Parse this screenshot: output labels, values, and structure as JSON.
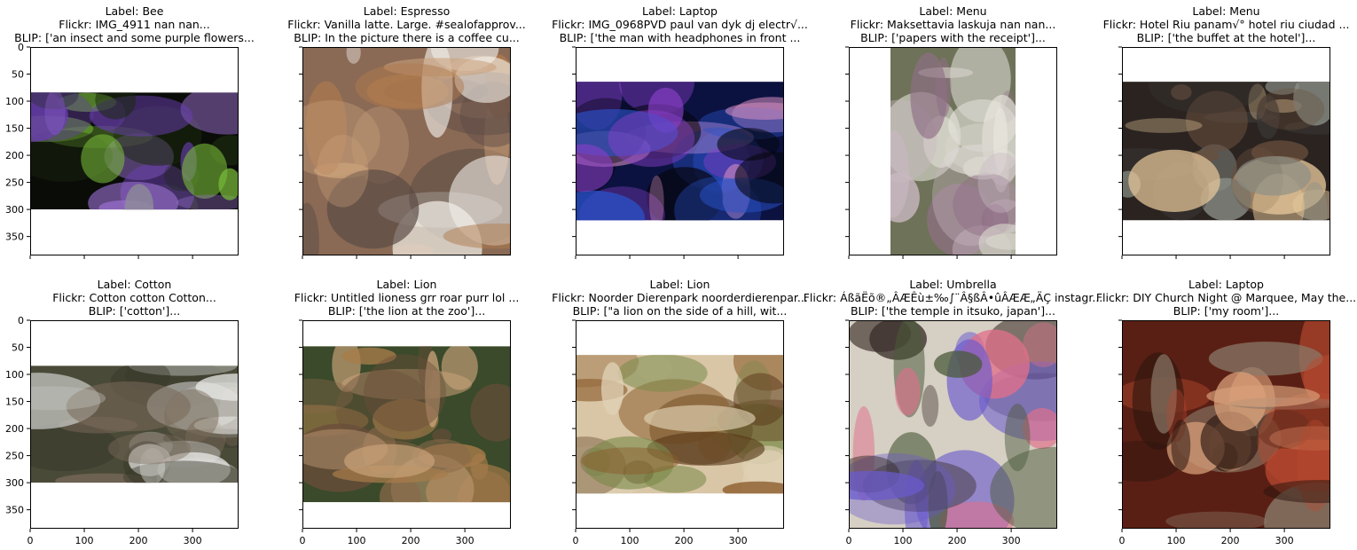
{
  "chart_data": {
    "type": "image_grid",
    "rows": 2,
    "cols": 5,
    "axis_range": [
      0,
      385
    ],
    "xticks": [
      0,
      100,
      200,
      300
    ],
    "yticks": [
      0,
      50,
      100,
      150,
      200,
      250,
      300,
      350
    ],
    "panels": [
      {
        "label": "Label: Bee",
        "flickr": "Flickr: IMG_4911 nan nan...",
        "blip": "BLIP: ['an insect and some purple flowers...",
        "content_y": [
          84,
          300
        ],
        "content_x": [
          0,
          385
        ],
        "palette": [
          "#0a0c08",
          "#1c2a10",
          "#7bbf3a",
          "#9a6fd0",
          "#6a3fb0"
        ],
        "show_yticklabels": true,
        "show_xticklabels": false
      },
      {
        "label": "Label: Espresso",
        "flickr": "Flickr: Vanilla latte. Large. #sealofapprov...",
        "blip": "BLIP: In the picture there is a coffee cu...",
        "content_y": [
          0,
          385
        ],
        "content_x": [
          0,
          385
        ],
        "palette": [
          "#8a6a55",
          "#f2efe9",
          "#c9a07a",
          "#b07a4e",
          "#5a4a44"
        ],
        "show_yticklabels": false,
        "show_xticklabels": false
      },
      {
        "label": "Label: Laptop",
        "flickr": "Flickr: IMG_0968PVD paul van dyk dj electr√...",
        "blip": "BLIP: ['the man with headphones in front ...",
        "content_y": [
          64,
          320
        ],
        "content_x": [
          0,
          385
        ],
        "palette": [
          "#0c1240",
          "#2a52c8",
          "#8a3fc9",
          "#d28cbf",
          "#05060f"
        ],
        "show_yticklabels": false,
        "show_xticklabels": false
      },
      {
        "label": "Label: Menu",
        "flickr": "Flickr: Maksettavia laskuja nan nan...",
        "blip": "BLIP: ['papers with the receipt']...",
        "content_y": [
          0,
          385
        ],
        "content_x": [
          77,
          308
        ],
        "palette": [
          "#6e7258",
          "#d9d7cf",
          "#c9b8c2",
          "#8f6f86",
          "#e8e6de"
        ],
        "show_yticklabels": false,
        "show_xticklabels": false
      },
      {
        "label": "Label: Menu",
        "flickr": "Flickr: Hotel Riu panam√° hotel riu ciudad ...",
        "blip": "BLIP: ['the buffet at the hotel']...",
        "content_y": [
          64,
          320
        ],
        "content_x": [
          0,
          385
        ],
        "palette": [
          "#2a2320",
          "#e6c79a",
          "#8a8f86",
          "#3a3634",
          "#6a4f3d"
        ],
        "show_yticklabels": false,
        "show_xticklabels": false
      },
      {
        "label": "Label: Cotton",
        "flickr": "Flickr: Cotton cotton Cotton...",
        "blip": "BLIP: ['cotton']...",
        "content_y": [
          84,
          300
        ],
        "content_x": [
          0,
          385
        ],
        "palette": [
          "#4a4a38",
          "#e8e8e6",
          "#7a6a5a",
          "#c8c9c6",
          "#3a3a2c"
        ],
        "show_yticklabels": true,
        "show_xticklabels": true
      },
      {
        "label": "Label: Lion",
        "flickr": "Flickr: Untitled lioness grr roar purr lol ...",
        "blip": "BLIP: ['the lion at the zoo']...",
        "content_y": [
          48,
          336
        ],
        "content_x": [
          0,
          385
        ],
        "palette": [
          "#3a4a2a",
          "#a77c4a",
          "#c9a27a",
          "#6a4e3a",
          "#8a6a4a"
        ],
        "show_yticklabels": false,
        "show_xticklabels": true
      },
      {
        "label": "Label: Lion",
        "flickr": "Flickr: Noorder Dierenpark noorderdierenpar...",
        "blip": "BLIP: [\"a lion on the side of a hill, wit...",
        "content_y": [
          64,
          320
        ],
        "content_x": [
          0,
          385
        ],
        "palette": [
          "#d8c6a6",
          "#7a8a4a",
          "#8a5a2a",
          "#5a3a1a",
          "#e0d2b6"
        ],
        "show_yticklabels": false,
        "show_xticklabels": true
      },
      {
        "label": "Label: Umbrella",
        "flickr": "Flickr: ÁßãËõ®„ÂÆÊù±‰∫¨Â§ßÂ•ûÂÆÆ„ÄÇ instagr...",
        "blip": "BLIP: ['the temple in itsuko, japan']...",
        "content_y": [
          0,
          385
        ],
        "content_x": [
          0,
          385
        ],
        "palette": [
          "#d6cfc4",
          "#3a2f2a",
          "#6a5acd",
          "#e0708a",
          "#4a5a3a"
        ],
        "show_yticklabels": false,
        "show_xticklabels": true
      },
      {
        "label": "Label: Laptop",
        "flickr": "Flickr: DIY Church Night @ Marquee, May the...",
        "blip": "BLIP: ['my room']...",
        "content_y": [
          0,
          385
        ],
        "content_x": [
          0,
          385
        ],
        "palette": [
          "#5a1f14",
          "#b84a30",
          "#2a160e",
          "#d9a07a",
          "#8a7a6a"
        ],
        "show_yticklabels": false,
        "show_xticklabels": true
      }
    ]
  }
}
